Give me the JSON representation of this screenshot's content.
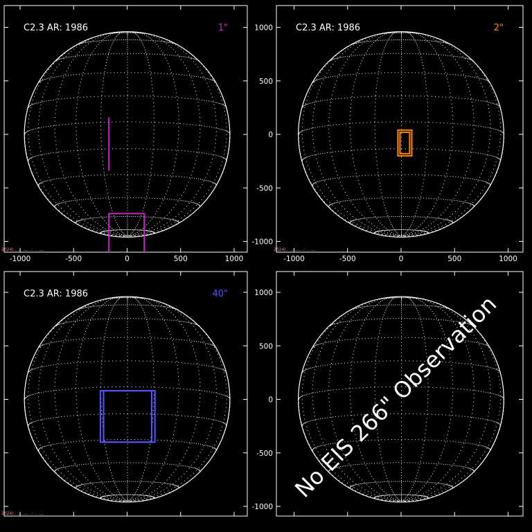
{
  "panels": [
    {
      "id": "p1",
      "label": "C2.3 AR: 1986",
      "slit": "1\"",
      "accent": "#cc22cc",
      "show_x_ticks": true,
      "show_y_ticks": false,
      "footer": "2024/.. ... ..., ..: .. ....",
      "fov": [
        {
          "kind": "line",
          "x": -170,
          "y1": 160,
          "y2": -340
        },
        {
          "kind": "box",
          "x1": -170,
          "x2": 160,
          "y1": -740,
          "y2": -1120
        }
      ]
    },
    {
      "id": "p2",
      "label": "C2.3 AR: 1986",
      "slit": "2\"",
      "accent": "#ff8800",
      "show_x_ticks": true,
      "show_y_ticks": true,
      "footer": "2024/.. ... ..., ..: .. ....",
      "fov": [
        {
          "kind": "box",
          "x1": -30,
          "x2": 100,
          "y1": 40,
          "y2": -200
        },
        {
          "kind": "box",
          "x1": -10,
          "x2": 80,
          "y1": 20,
          "y2": -180
        }
      ]
    },
    {
      "id": "p3",
      "label": "C2.3 AR: 1986",
      "slit": "40\"",
      "accent": "#5555ff",
      "show_x_ticks": false,
      "show_y_ticks": false,
      "footer": "2024/.. ... ..., ..: .. ....",
      "fov": [
        {
          "kind": "box",
          "x1": -250,
          "x2": 260,
          "y1": 80,
          "y2": -400
        },
        {
          "kind": "box",
          "x1": -220,
          "x2": 230,
          "y1": 80,
          "y2": -400
        }
      ]
    },
    {
      "id": "p4",
      "label": "",
      "slit": "",
      "accent": "#ffffff",
      "show_x_ticks": false,
      "show_y_ticks": true,
      "footer": "",
      "fov": [],
      "overlay_text": "No EIS 266\" Observation"
    }
  ],
  "axis": {
    "x_ticks": [
      -1000,
      -500,
      0,
      500,
      1000
    ],
    "y_ticks": [
      1000,
      500,
      0,
      -500,
      -1000
    ],
    "disk_radius": 960
  },
  "colors": {
    "background": "#000000",
    "foreground": "#ffffff",
    "footer": "#dd8888"
  }
}
